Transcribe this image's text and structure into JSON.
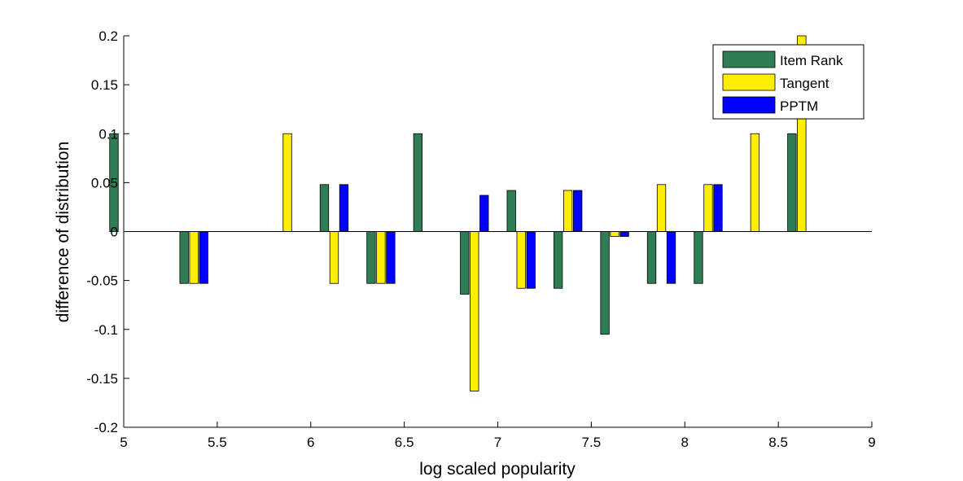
{
  "chart_data": {
    "type": "bar",
    "title": "",
    "xlabel": "log scaled popularity",
    "ylabel": "difference of distribution",
    "xlim": [
      5,
      9
    ],
    "ylim": [
      -0.2,
      0.2
    ],
    "xticks": [
      "5",
      "5.5",
      "6",
      "6.5",
      "7",
      "7.5",
      "8",
      "8.5",
      "9"
    ],
    "yticks": [
      "0.2",
      "0.15",
      "0.1",
      "0.05",
      "0",
      "-0.05",
      "-0.1",
      "-0.15",
      "-0.2"
    ],
    "grid": false,
    "legend_position": "top-right",
    "x": [
      5.0,
      5.375,
      5.875,
      6.125,
      6.375,
      6.625,
      6.875,
      7.125,
      7.375,
      7.625,
      7.875,
      8.125,
      8.375,
      8.625
    ],
    "series": [
      {
        "name": "Item Rank",
        "color": "#2e7d55",
        "values": [
          0.1,
          -0.053,
          0.0,
          0.048,
          -0.053,
          0.1,
          -0.064,
          0.042,
          -0.058,
          -0.105,
          -0.053,
          -0.053,
          0.0,
          0.1
        ]
      },
      {
        "name": "Tangent",
        "color": "#ffee00",
        "values": [
          0.0,
          -0.053,
          0.1,
          -0.053,
          -0.053,
          0.0,
          -0.163,
          -0.058,
          0.042,
          -0.005,
          0.048,
          0.048,
          0.1,
          0.2
        ]
      },
      {
        "name": "PPTM",
        "color": "#0000ff",
        "values": [
          0.0,
          -0.053,
          0.0,
          0.048,
          -0.053,
          0.0,
          0.037,
          -0.058,
          0.042,
          -0.005,
          -0.053,
          0.048,
          0.0,
          0.0
        ]
      }
    ]
  }
}
